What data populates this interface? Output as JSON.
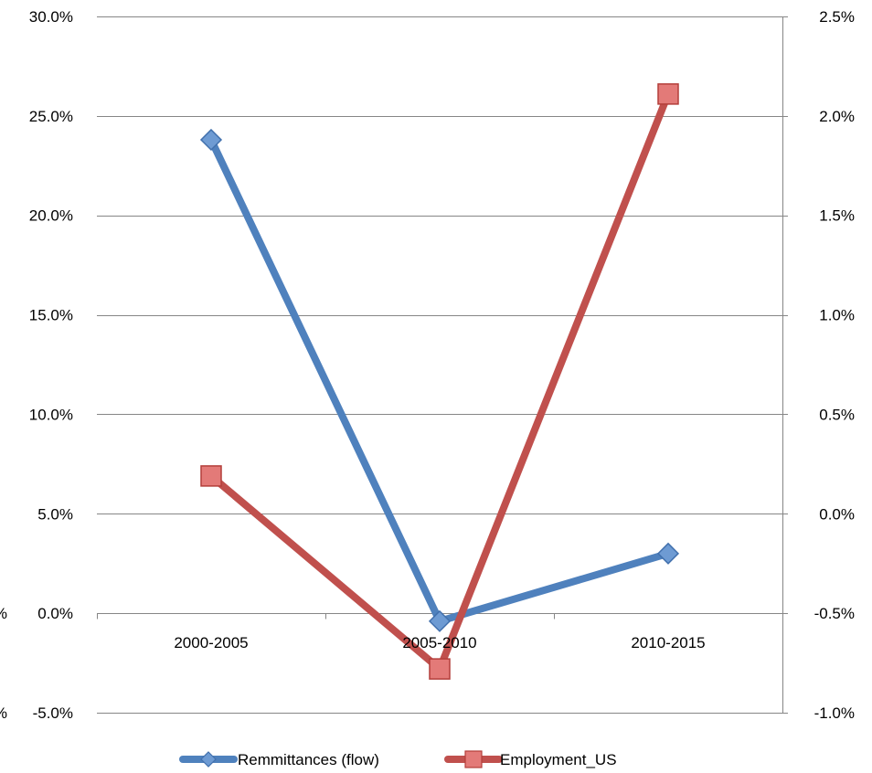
{
  "chart_data": {
    "type": "line",
    "categories": [
      "2000-2005",
      "2005-2010",
      "2010-2015"
    ],
    "series": [
      {
        "name": "Remmittances (flow)",
        "axis": "left",
        "values": [
          0.238,
          -0.004,
          0.03
        ],
        "color": "#4F81BD",
        "marker": "diamond"
      },
      {
        "name": "Employment_US",
        "axis": "right",
        "values": [
          0.0019,
          -0.0078,
          0.0211
        ],
        "color": "#C0504D",
        "marker": "square"
      }
    ],
    "y_left": {
      "ylim": [
        -0.05,
        0.3
      ],
      "ticks": [
        -0.05,
        0,
        0.05,
        0.1,
        0.15,
        0.2,
        0.25,
        0.3
      ],
      "tick_labels": [
        "-5.0%",
        "0.0%",
        "5.0%",
        "10.0%",
        "15.0%",
        "20.0%",
        "25.0%",
        "30.0%"
      ]
    },
    "y_right": {
      "ylim": [
        -0.01,
        0.025
      ],
      "ticks": [
        -0.01,
        -0.005,
        0,
        0.005,
        0.01,
        0.015,
        0.02,
        0.025
      ],
      "tick_labels": [
        "-1.0%",
        "-0.5%",
        "0.0%",
        "0.5%",
        "1.0%",
        "1.5%",
        "2.0%",
        "2.5%"
      ]
    },
    "clipped_labels": [
      "%",
      "%"
    ],
    "grid": true,
    "legend": "bottom-center"
  }
}
